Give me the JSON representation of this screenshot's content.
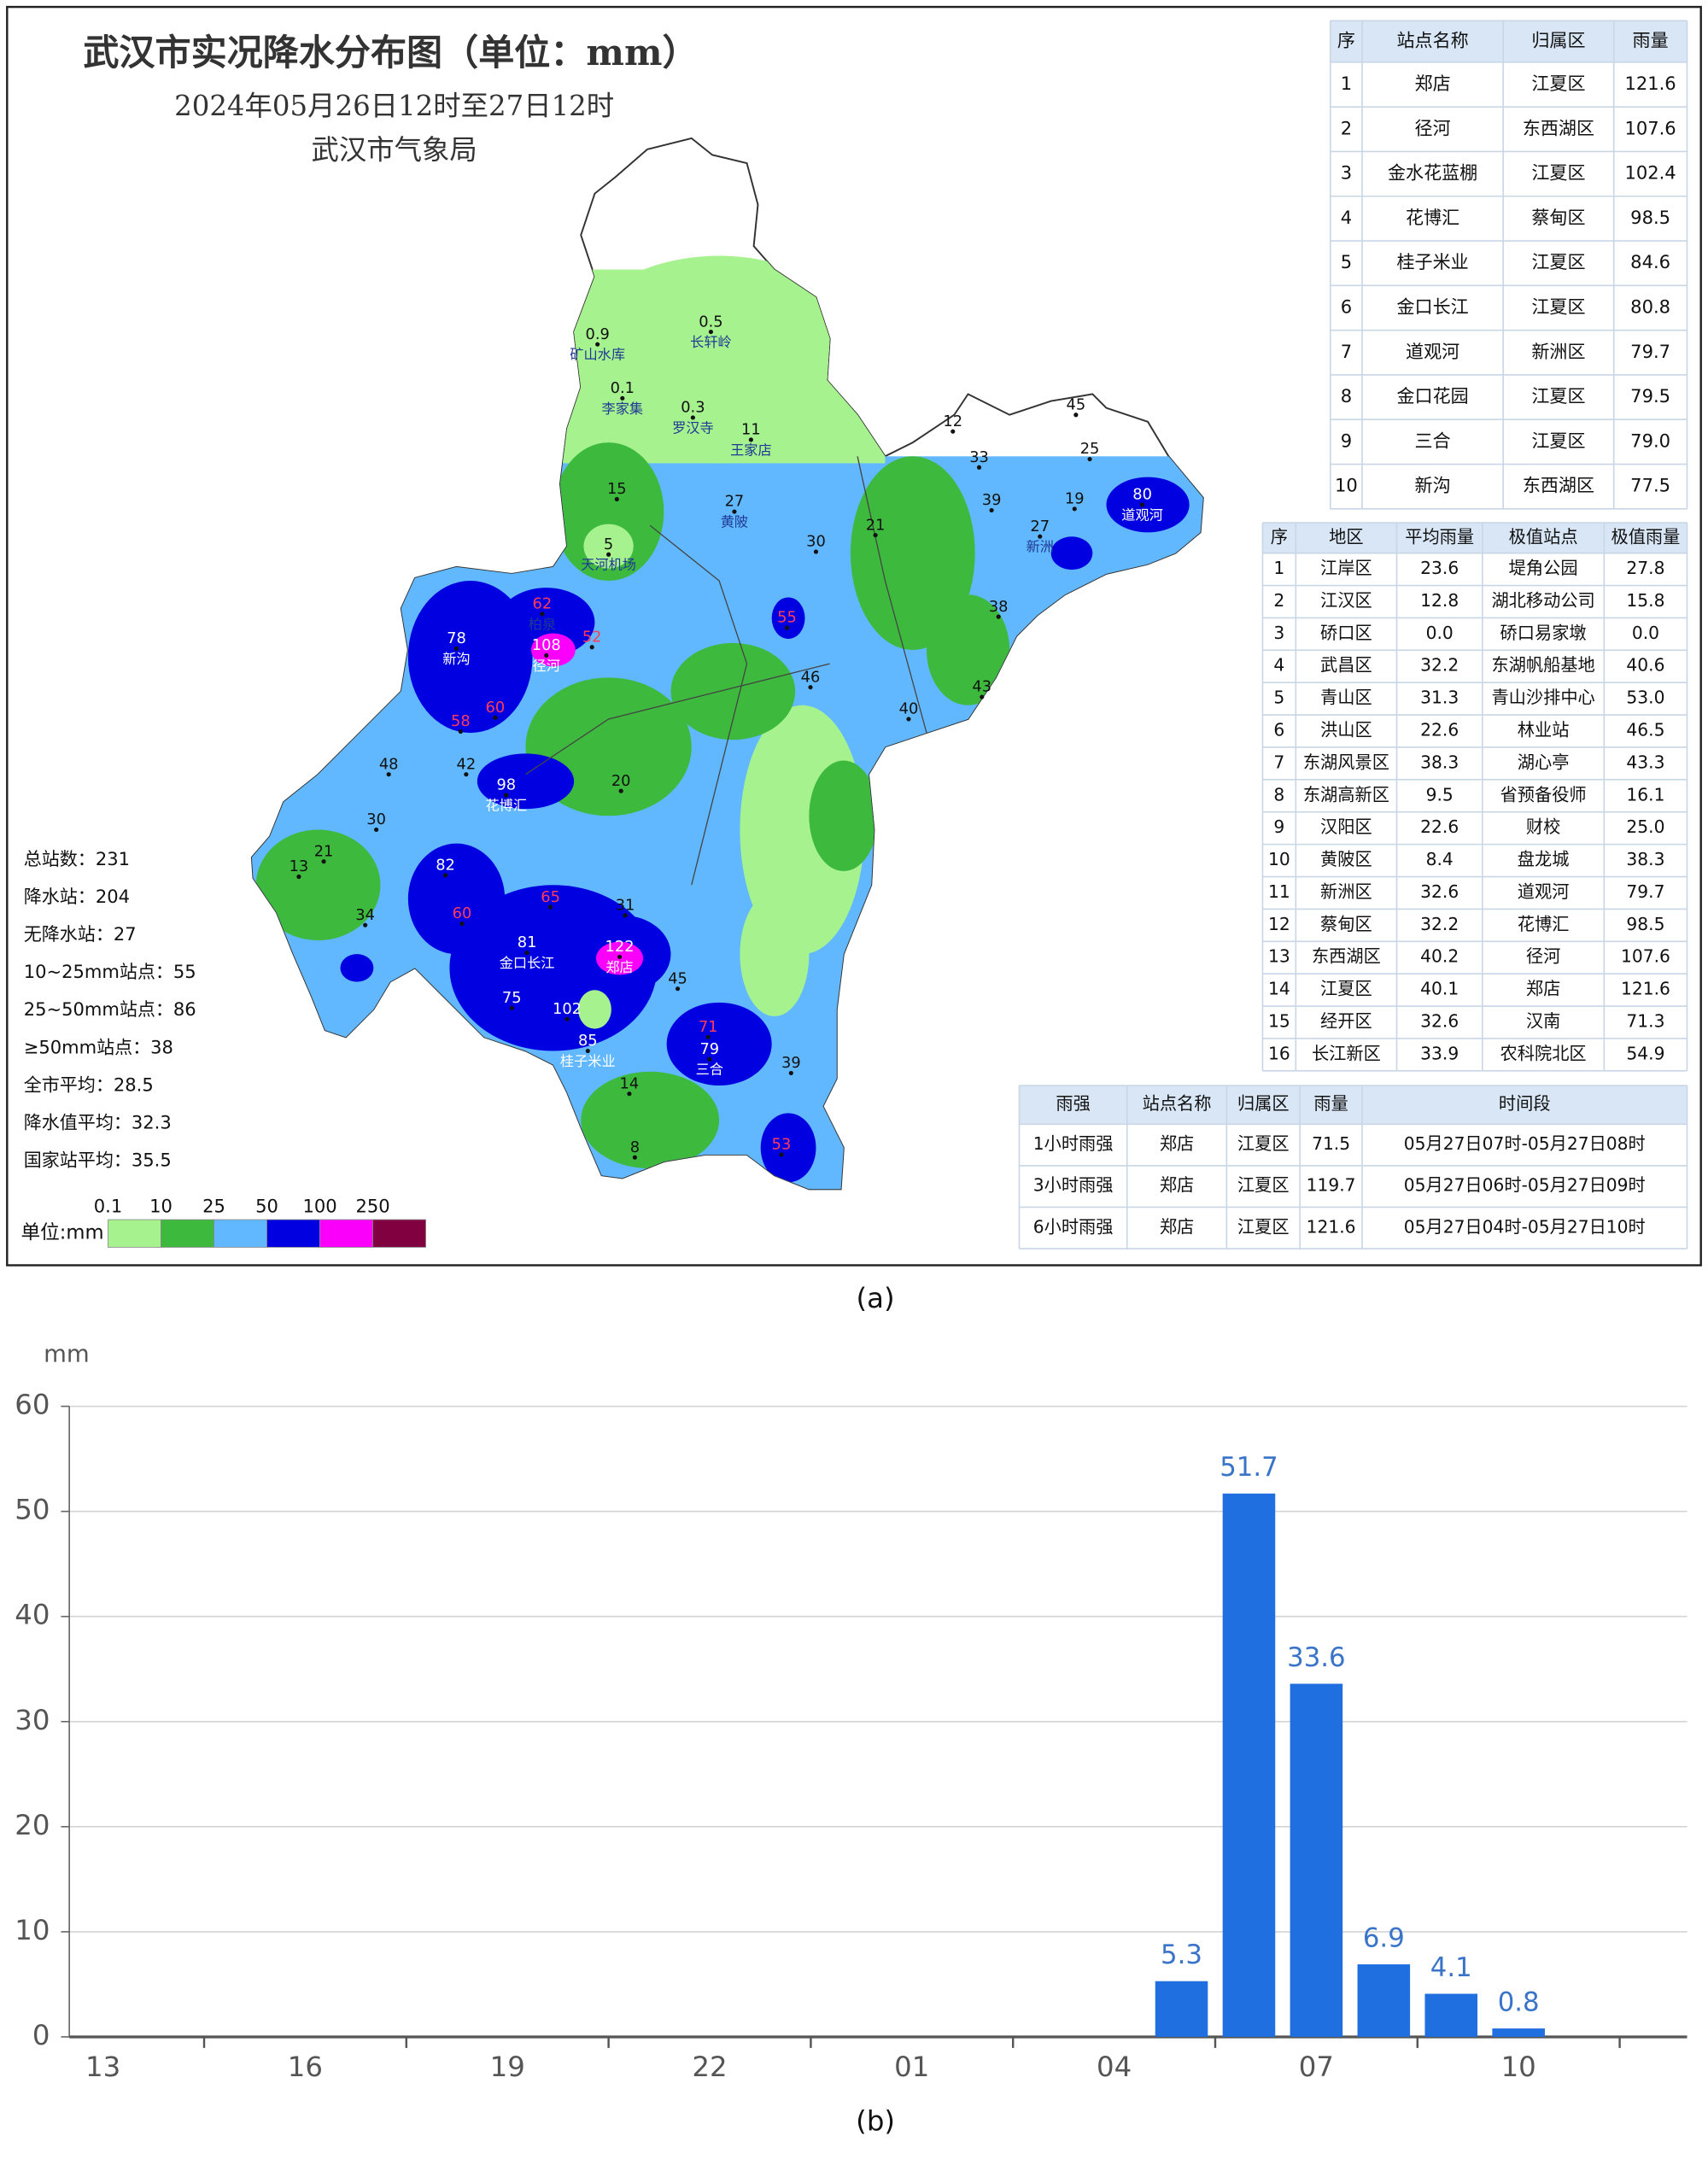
{
  "map_panel": {
    "title": "武汉市实况降水分布图（单位：mm）",
    "subtitle": "2024年05月26日12时至27日12时",
    "agency": "武汉市气象局",
    "caption": "(a)",
    "stats": [
      "总站数：231",
      "降水站：204",
      "无降水站：27",
      "10~25mm站点：55",
      "25~50mm站点：86",
      "≥50mm站点：38",
      "全市平均：28.5",
      "降水值平均：32.3",
      "国家站平均：35.5"
    ],
    "legend": {
      "unit_label": "单位:mm",
      "breaks": [
        0.1,
        10,
        25,
        50,
        100,
        250
      ],
      "colors": [
        "#a6f28f",
        "#3dba3d",
        "#61b8ff",
        "#0000e1",
        "#fa00fa",
        "#800040"
      ]
    },
    "stations": [
      {
        "value": 0.9,
        "name": "矿山水库"
      },
      {
        "value": 0.5,
        "name": "长轩岭"
      },
      {
        "value": 0.1,
        "name": "李家集"
      },
      {
        "value": 0.3,
        "name": "罗汉寺"
      },
      {
        "value": 11,
        "name": "王家店"
      },
      {
        "value": 15
      },
      {
        "value": 5,
        "name": "天河机场"
      },
      {
        "value": 27,
        "name": "黄陂"
      },
      {
        "value": 30
      },
      {
        "value": 21
      },
      {
        "value": 62,
        "name": "柏泉"
      },
      {
        "value": 78,
        "name": "新沟"
      },
      {
        "value": 108,
        "name": "径河"
      },
      {
        "value": 52
      },
      {
        "value": 60
      },
      {
        "value": 58
      },
      {
        "value": 55
      },
      {
        "value": 45
      },
      {
        "value": 25
      },
      {
        "value": 80,
        "name": "道观河"
      },
      {
        "value": 19
      },
      {
        "value": 27,
        "name": "新洲"
      },
      {
        "value": 12
      },
      {
        "value": 33
      },
      {
        "value": 39
      },
      {
        "value": 98,
        "name": "花博汇"
      },
      {
        "value": 42
      },
      {
        "value": 48
      },
      {
        "value": 30
      },
      {
        "value": 21
      },
      {
        "value": 13
      },
      {
        "value": 34
      },
      {
        "value": 82
      },
      {
        "value": 60
      },
      {
        "value": 65
      },
      {
        "value": 81,
        "name": "金口长江"
      },
      {
        "value": 122,
        "name": "郑店"
      },
      {
        "value": 75
      },
      {
        "value": 102
      },
      {
        "value": 85,
        "name": "桂子米业"
      },
      {
        "value": 79,
        "name": "三合"
      },
      {
        "value": 53
      },
      {
        "value": 40
      },
      {
        "value": 43
      },
      {
        "value": 38
      },
      {
        "value": 46
      },
      {
        "value": 20
      },
      {
        "value": 31
      },
      {
        "value": 45
      },
      {
        "value": 71
      },
      {
        "value": 14
      },
      {
        "value": 8
      },
      {
        "value": 39
      }
    ],
    "station_table": {
      "headers": [
        "序",
        "站点名称",
        "归属区",
        "雨量"
      ],
      "rows": [
        [
          "1",
          "郑店",
          "江夏区",
          "121.6"
        ],
        [
          "2",
          "径河",
          "东西湖区",
          "107.6"
        ],
        [
          "3",
          "金水花蓝棚",
          "江夏区",
          "102.4"
        ],
        [
          "4",
          "花博汇",
          "蔡甸区",
          "98.5"
        ],
        [
          "5",
          "桂子米业",
          "江夏区",
          "84.6"
        ],
        [
          "6",
          "金口长江",
          "江夏区",
          "80.8"
        ],
        [
          "7",
          "道观河",
          "新洲区",
          "79.7"
        ],
        [
          "8",
          "金口花园",
          "江夏区",
          "79.5"
        ],
        [
          "9",
          "三合",
          "江夏区",
          "79.0"
        ],
        [
          "10",
          "新沟",
          "东西湖区",
          "77.5"
        ]
      ]
    },
    "district_table": {
      "headers": [
        "序",
        "地区",
        "平均雨量",
        "极值站点",
        "极值雨量"
      ],
      "rows": [
        [
          "1",
          "江岸区",
          "23.6",
          "堤角公园",
          "27.8"
        ],
        [
          "2",
          "江汉区",
          "12.8",
          "湖北移动公司",
          "15.8"
        ],
        [
          "3",
          "硚口区",
          "0.0",
          "硚口易家墩",
          "0.0"
        ],
        [
          "4",
          "武昌区",
          "32.2",
          "东湖帆船基地",
          "40.6"
        ],
        [
          "5",
          "青山区",
          "31.3",
          "青山沙排中心",
          "53.0"
        ],
        [
          "6",
          "洪山区",
          "22.6",
          "林业站",
          "46.5"
        ],
        [
          "7",
          "东湖风景区",
          "38.3",
          "湖心亭",
          "43.3"
        ],
        [
          "8",
          "东湖高新区",
          "9.5",
          "省预备役师",
          "16.1"
        ],
        [
          "9",
          "汉阳区",
          "22.6",
          "财校",
          "25.0"
        ],
        [
          "10",
          "黄陂区",
          "8.4",
          "盘龙城",
          "38.3"
        ],
        [
          "11",
          "新洲区",
          "32.6",
          "道观河",
          "79.7"
        ],
        [
          "12",
          "蔡甸区",
          "32.2",
          "花博汇",
          "98.5"
        ],
        [
          "13",
          "东西湖区",
          "40.2",
          "径河",
          "107.6"
        ],
        [
          "14",
          "江夏区",
          "40.1",
          "郑店",
          "121.6"
        ],
        [
          "15",
          "经开区",
          "32.6",
          "汉南",
          "71.3"
        ],
        [
          "16",
          "长江新区",
          "33.9",
          "农科院北区",
          "54.9"
        ]
      ]
    },
    "intensity_table": {
      "headers": [
        "雨强",
        "站点名称",
        "归属区",
        "雨量",
        "时间段"
      ],
      "rows": [
        [
          "1小时雨强",
          "郑店",
          "江夏区",
          "71.5",
          "05月27日07时-05月27日08时"
        ],
        [
          "3小时雨强",
          "郑店",
          "江夏区",
          "119.7",
          "05月27日06时-05月27日09时"
        ],
        [
          "6小时雨强",
          "郑店",
          "江夏区",
          "121.6",
          "05月27日04时-05月27日10时"
        ]
      ]
    }
  },
  "chart_data": {
    "type": "bar",
    "caption": "(b)",
    "y_unit": "mm",
    "color": "#1f6fe0",
    "label_color": "#3a74c9",
    "categories": [
      "13",
      null,
      null,
      "16",
      null,
      null,
      "19",
      null,
      null,
      "22",
      null,
      null,
      "01",
      null,
      null,
      "04",
      null,
      null,
      "07",
      null,
      null,
      "10",
      null,
      null
    ],
    "values": [
      null,
      null,
      null,
      null,
      null,
      null,
      null,
      null,
      null,
      null,
      null,
      null,
      null,
      null,
      null,
      null,
      5.3,
      51.7,
      33.6,
      6.9,
      4.1,
      0.8,
      null,
      null
    ],
    "ylim": [
      0,
      60
    ],
    "yticks": [
      0,
      10,
      20,
      30,
      40,
      50,
      60
    ],
    "grid": true
  }
}
